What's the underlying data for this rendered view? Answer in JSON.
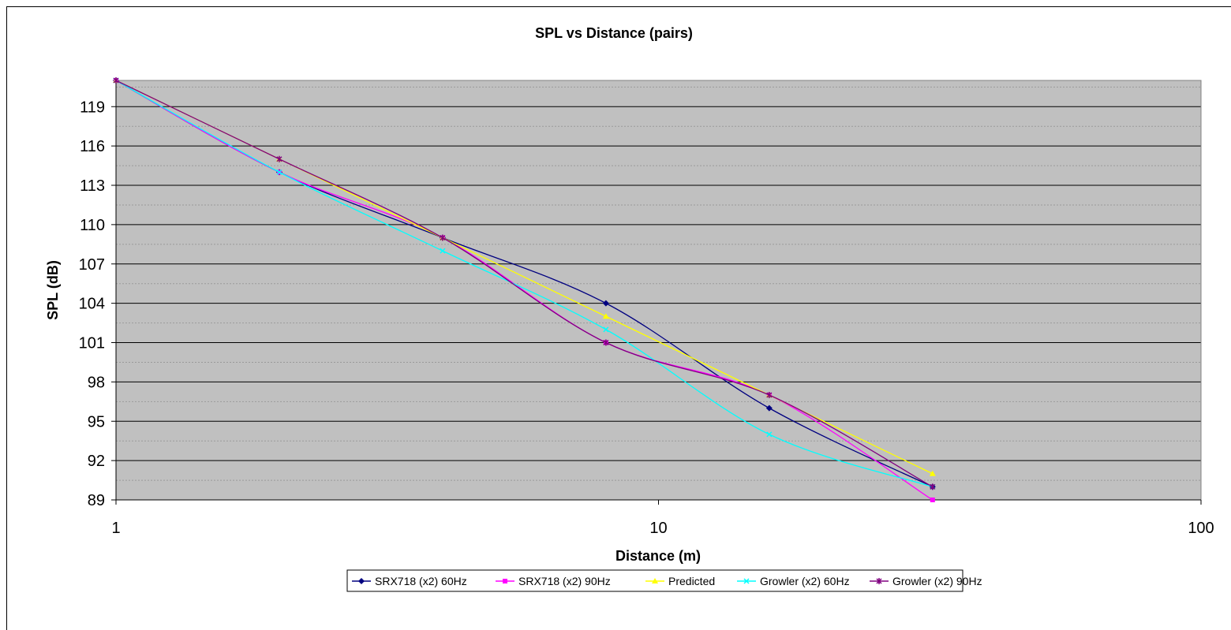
{
  "chart_data": {
    "type": "line",
    "title": "SPL vs Distance (pairs)",
    "xlabel": "Distance (m)",
    "ylabel": "SPL (dB)",
    "x_scale": "log",
    "xlim": [
      1,
      100
    ],
    "ylim": [
      89,
      121
    ],
    "x_ticks": [
      1,
      10,
      100
    ],
    "y_ticks": [
      89,
      92,
      95,
      98,
      101,
      104,
      107,
      110,
      113,
      116,
      119
    ],
    "grid": true,
    "legend_position": "bottom",
    "x": [
      1,
      2,
      4,
      8,
      16,
      32
    ],
    "series": [
      {
        "name": "SRX718 (x2) 60Hz",
        "color": "#000080",
        "marker": "diamond",
        "values": [
          121,
          114,
          109,
          104,
          96,
          90
        ]
      },
      {
        "name": "SRX718 (x2) 90Hz",
        "color": "#ff00ff",
        "marker": "square",
        "values": [
          121,
          114,
          109,
          101,
          97,
          89
        ]
      },
      {
        "name": "Predicted",
        "color": "#ffff00",
        "marker": "triangle",
        "values": [
          121,
          115,
          109,
          103,
          97,
          91
        ]
      },
      {
        "name": "Growler (x2) 60Hz",
        "color": "#00ffff",
        "marker": "x",
        "values": [
          121,
          114,
          108,
          102,
          94,
          90
        ]
      },
      {
        "name": "Growler (x2) 90Hz",
        "color": "#800080",
        "marker": "star",
        "values": [
          121,
          115,
          109,
          101,
          97,
          90
        ]
      }
    ]
  }
}
